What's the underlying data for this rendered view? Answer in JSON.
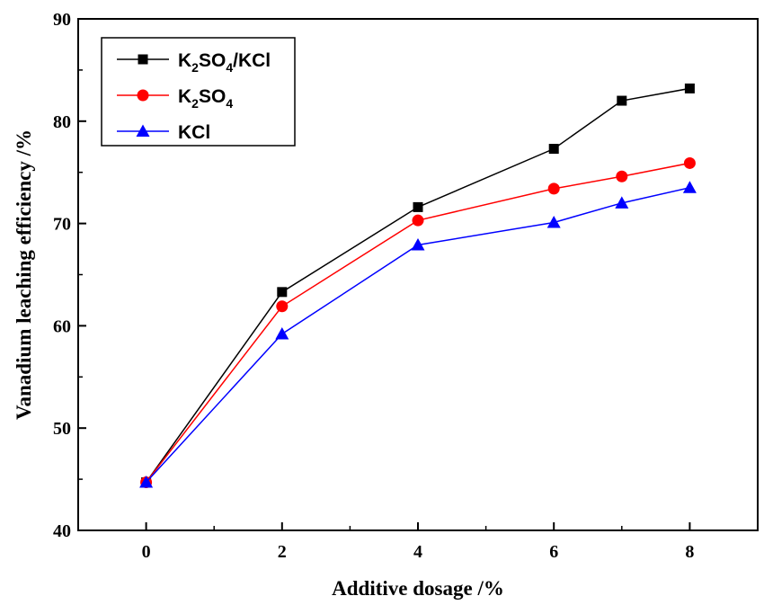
{
  "chart_data": {
    "type": "line",
    "xlabel": "Additive dosage /%",
    "ylabel": "Vanadium leaching efficiency /%",
    "xlim": [
      -1,
      9
    ],
    "ylim": [
      40,
      90
    ],
    "xticks": [
      0,
      2,
      4,
      6,
      8
    ],
    "yticks": [
      40,
      50,
      60,
      70,
      80,
      90
    ],
    "x": [
      0,
      2,
      4,
      6,
      7,
      8
    ],
    "grid": false,
    "legend_position": "top-left",
    "series": [
      {
        "name": "K2SO4/KCl",
        "label_parts": [
          {
            "text": "K"
          },
          {
            "text": "2",
            "sub": true
          },
          {
            "text": "SO"
          },
          {
            "text": "4",
            "sub": true
          },
          {
            "text": "/KCl"
          }
        ],
        "color": "#000000",
        "marker": "square",
        "values": [
          44.7,
          63.3,
          71.6,
          77.3,
          82.0,
          83.2
        ]
      },
      {
        "name": "K2SO4",
        "label_parts": [
          {
            "text": "K"
          },
          {
            "text": "2",
            "sub": true
          },
          {
            "text": "SO"
          },
          {
            "text": "4",
            "sub": true
          }
        ],
        "color": "#ff0000",
        "marker": "circle",
        "values": [
          44.7,
          61.9,
          70.3,
          73.4,
          74.6,
          75.9
        ]
      },
      {
        "name": "KCl",
        "label_parts": [
          {
            "text": "KCl"
          }
        ],
        "color": "#0000ff",
        "marker": "triangle",
        "values": [
          44.7,
          59.2,
          67.9,
          70.1,
          72.0,
          73.5
        ]
      }
    ]
  }
}
